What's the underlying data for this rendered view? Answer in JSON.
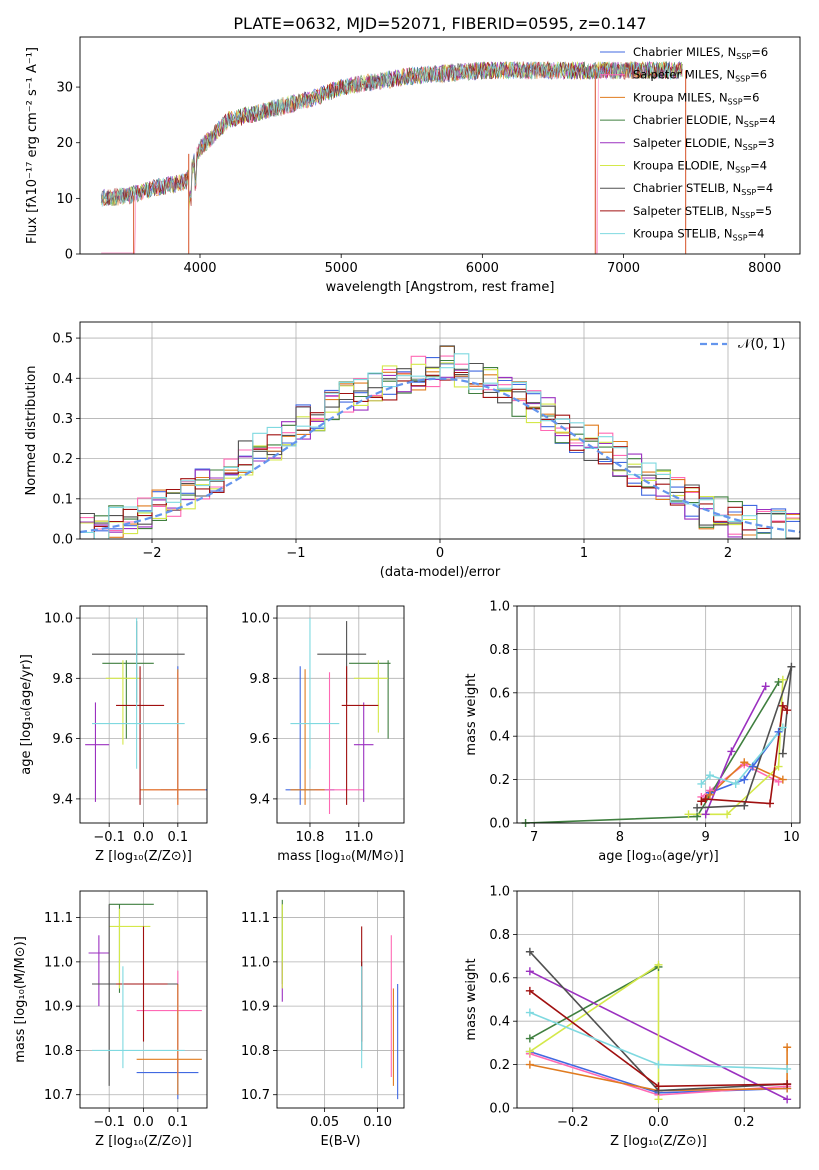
{
  "title": "PLATE=0632, MJD=52071, FIBERID=0595, z=0.147",
  "colors": {
    "Chabrier MILES": "#4169e1",
    "Salpeter MILES": "#ff69b4",
    "Kroupa MILES": "#e07b1f",
    "Chabrier ELODIE": "#3f7f3f",
    "Salpeter ELODIE": "#9b30c0",
    "Kroupa ELODIE": "#d4e84a",
    "Chabrier STELIB": "#505050",
    "Salpeter STELIB": "#a01010",
    "Kroupa STELIB": "#7fd9e0",
    "normal_fit": "#6495ed"
  },
  "panels": {
    "spectrum": {
      "xlabel": "wavelength [Angstrom, rest frame]",
      "ylabel": "Flux [fλ10⁻¹⁷ erg cm⁻² s⁻¹ A⁻¹]",
      "xticks": [
        "4000",
        "5000",
        "6000",
        "7000",
        "8000"
      ],
      "yticks": [
        "0",
        "10",
        "20",
        "30"
      ],
      "legend": [
        {
          "base": "Chabrier MILES, N",
          "sub": "SSP",
          "val": "=6"
        },
        {
          "base": "Salpeter MILES, N",
          "sub": "SSP",
          "val": "=6"
        },
        {
          "base": "Kroupa MILES, N",
          "sub": "SSP",
          "val": "=6"
        },
        {
          "base": "Chabrier ELODIE, N",
          "sub": "SSP",
          "val": "=4"
        },
        {
          "base": "Salpeter ELODIE, N",
          "sub": "SSP",
          "val": "=3"
        },
        {
          "base": "Kroupa ELODIE, N",
          "sub": "SSP",
          "val": "=4"
        },
        {
          "base": "Chabrier STELIB, N",
          "sub": "SSP",
          "val": "=4"
        },
        {
          "base": "Salpeter STELIB, N",
          "sub": "SSP",
          "val": "=5"
        },
        {
          "base": "Kroupa STELIB, N",
          "sub": "SSP",
          "val": "=4"
        }
      ]
    },
    "hist": {
      "xlabel": "(data-model)/error",
      "ylabel": "Normed distribution",
      "xticks": [
        "−2",
        "−1",
        "0",
        "1",
        "2"
      ],
      "yticks": [
        "0.0",
        "0.1",
        "0.2",
        "0.3",
        "0.4",
        "0.5"
      ],
      "legend": "𝒩(0, 1)"
    },
    "age_z": {
      "xlabel": "Z [log₁₀(Z/Z⊙)]",
      "ylabel": "age  [log₁₀(age/yr)]",
      "xticks": [
        "−0.1",
        "0.0",
        "0.1"
      ],
      "yticks": [
        "9.4",
        "9.6",
        "9.8",
        "10.0"
      ]
    },
    "age_mass": {
      "xlabel": "mass [log₁₀(M/M⊙)]",
      "xticks": [
        "10.8",
        "11.0"
      ],
      "yticks": [
        "9.4",
        "9.6",
        "9.8",
        "10.0"
      ]
    },
    "mw_age": {
      "xlabel": "age  [log₁₀(age/yr)]",
      "ylabel": "mass weight",
      "xticks": [
        "7",
        "8",
        "9",
        "10"
      ],
      "yticks": [
        "0.0",
        "0.2",
        "0.4",
        "0.6",
        "0.8",
        "1.0"
      ]
    },
    "mass_z": {
      "xlabel": "Z [log₁₀(Z/Z⊙)]",
      "ylabel": "mass [log₁₀(M/M⊙)]",
      "xticks": [
        "−0.1",
        "0.0",
        "0.1"
      ],
      "yticks": [
        "10.7",
        "10.8",
        "10.9",
        "11.0",
        "11.1"
      ]
    },
    "mass_ebv": {
      "xlabel": "E(B-V)",
      "xticks": [
        "0.05",
        "0.10"
      ],
      "yticks": [
        "10.7",
        "10.8",
        "10.9",
        "11.0",
        "11.1"
      ]
    },
    "mw_z": {
      "xlabel": "Z [log₁₀(Z/Z⊙)]",
      "ylabel": "mass weight",
      "xticks": [
        "−0.2",
        "0.0",
        "0.2"
      ],
      "yticks": [
        "0.0",
        "0.2",
        "0.4",
        "0.6",
        "0.8",
        "1.0"
      ]
    }
  },
  "chart_data": [
    {
      "type": "line",
      "xlim": [
        3150,
        8250
      ],
      "ylim": [
        0,
        39
      ],
      "description_series": "9 model spectra (flux vs rest wavelength) overlapping the observed spectrum",
      "continuum": [
        [
          3300,
          10
        ],
        [
          3500,
          10.5
        ],
        [
          3700,
          12
        ],
        [
          3900,
          13
        ],
        [
          4000,
          19
        ],
        [
          4200,
          24
        ],
        [
          4500,
          26
        ],
        [
          4800,
          28
        ],
        [
          5000,
          30
        ],
        [
          5500,
          32
        ],
        [
          6000,
          33
        ],
        [
          6500,
          33
        ],
        [
          7000,
          33
        ],
        [
          7400,
          33
        ]
      ],
      "gaps": {
        "Salpeter MILES": [
          3530,
          6810,
          7450
        ]
      }
    },
    {
      "type": "bar",
      "xlim": [
        -2.5,
        2.5
      ],
      "ylim": [
        0,
        0.54
      ],
      "normal": {
        "mean": 0,
        "sigma": 1
      },
      "bin_width": 0.1,
      "typical_values": [
        0.02,
        0.03,
        0.04,
        0.05,
        0.06,
        0.08,
        0.09,
        0.11,
        0.13,
        0.16,
        0.18,
        0.2,
        0.22,
        0.24,
        0.27,
        0.29,
        0.31,
        0.33,
        0.35,
        0.36,
        0.38,
        0.39,
        0.4,
        0.41,
        0.42,
        0.44,
        0.42,
        0.4,
        0.39,
        0.38,
        0.35,
        0.33,
        0.31,
        0.28,
        0.26,
        0.24,
        0.22,
        0.2,
        0.17,
        0.15,
        0.13,
        0.11,
        0.09,
        0.07,
        0.06,
        0.05,
        0.04,
        0.03,
        0.03,
        0.02
      ]
    },
    {
      "type": "scatter",
      "name": "age vs Z",
      "xlim": [
        -0.185,
        0.185
      ],
      "ylim": [
        9.32,
        10.04
      ],
      "points": [
        {
          "m": "Chabrier MILES",
          "x": 0.1,
          "y": 9.43,
          "xe": [
            0.05,
            0.2
          ],
          "ye": [
            9.4,
            9.84
          ]
        },
        {
          "m": "Salpeter MILES",
          "x": 0.1,
          "y": 9.43,
          "xe": [
            0.0,
            0.18
          ],
          "ye": [
            9.38,
            9.82
          ]
        },
        {
          "m": "Kroupa MILES",
          "x": 0.1,
          "y": 9.43,
          "xe": [
            -0.01,
            0.18
          ],
          "ye": [
            9.38,
            9.83
          ]
        },
        {
          "m": "Chabrier ELODIE",
          "x": -0.05,
          "y": 9.85,
          "xe": [
            -0.12,
            0.03
          ],
          "ye": [
            9.6,
            9.86
          ]
        },
        {
          "m": "Salpeter ELODIE",
          "x": -0.14,
          "y": 9.58,
          "xe": [
            -0.17,
            -0.1
          ],
          "ye": [
            9.39,
            9.72
          ]
        },
        {
          "m": "Kroupa ELODIE",
          "x": -0.06,
          "y": 9.8,
          "xe": [
            -0.11,
            -0.01
          ],
          "ye": [
            9.58,
            9.86
          ]
        },
        {
          "m": "Chabrier STELIB",
          "x": -0.02,
          "y": 9.88,
          "xe": [
            -0.15,
            0.12
          ],
          "ye": [
            9.72,
            9.99
          ]
        },
        {
          "m": "Salpeter STELIB",
          "x": -0.01,
          "y": 9.71,
          "xe": [
            -0.08,
            0.06
          ],
          "ye": [
            9.38,
            9.84
          ]
        },
        {
          "m": "Kroupa STELIB",
          "x": -0.02,
          "y": 9.65,
          "xe": [
            -0.15,
            0.12
          ],
          "ye": [
            9.5,
            10.0
          ]
        }
      ]
    },
    {
      "type": "scatter",
      "name": "age vs mass",
      "xlim": [
        10.665,
        11.185
      ],
      "ylim": [
        9.32,
        10.04
      ],
      "points": [
        {
          "m": "Chabrier MILES",
          "x": 10.76,
          "y": 9.43,
          "xe": [
            10.7,
            10.9
          ],
          "ye": [
            9.38,
            9.84
          ]
        },
        {
          "m": "Salpeter MILES",
          "x": 10.88,
          "y": 9.43,
          "xe": [
            10.82,
            11.02
          ],
          "ye": [
            9.35,
            9.82
          ]
        },
        {
          "m": "Kroupa MILES",
          "x": 10.78,
          "y": 9.43,
          "xe": [
            10.72,
            10.86
          ],
          "ye": [
            9.38,
            9.83
          ]
        },
        {
          "m": "Chabrier ELODIE",
          "x": 11.12,
          "y": 9.85,
          "xe": [
            10.96,
            11.13
          ],
          "ye": [
            9.6,
            9.86
          ]
        },
        {
          "m": "Salpeter ELODIE",
          "x": 11.02,
          "y": 9.58,
          "xe": [
            10.98,
            11.06
          ],
          "ye": [
            9.39,
            9.72
          ]
        },
        {
          "m": "Kroupa ELODIE",
          "x": 11.08,
          "y": 9.8,
          "xe": [
            10.98,
            11.12
          ],
          "ye": [
            9.62,
            9.86
          ]
        },
        {
          "m": "Chabrier STELIB",
          "x": 10.95,
          "y": 9.88,
          "xe": [
            10.83,
            11.03
          ],
          "ye": [
            9.72,
            9.99
          ]
        },
        {
          "m": "Salpeter STELIB",
          "x": 10.95,
          "y": 9.71,
          "xe": [
            10.93,
            11.08
          ],
          "ye": [
            9.38,
            9.84
          ]
        },
        {
          "m": "Kroupa STELIB",
          "x": 10.8,
          "y": 9.65,
          "xe": [
            10.72,
            10.92
          ],
          "ye": [
            9.5,
            10.0
          ]
        }
      ]
    },
    {
      "type": "line",
      "name": "mass weight vs age",
      "xlim": [
        6.8,
        10.1
      ],
      "ylim": [
        0,
        1
      ],
      "series": [
        {
          "m": "Chabrier MILES",
          "x": [
            8.95,
            9.05,
            9.45,
            9.55,
            9.85
          ],
          "y": [
            0.1,
            0.14,
            0.2,
            0.26,
            0.42
          ]
        },
        {
          "m": "Salpeter MILES",
          "x": [
            8.95,
            9.05,
            9.45,
            9.85
          ],
          "y": [
            0.12,
            0.15,
            0.27,
            0.19
          ]
        },
        {
          "m": "Kroupa MILES",
          "x": [
            8.95,
            9.05,
            9.45,
            9.9
          ],
          "y": [
            0.1,
            0.13,
            0.28,
            0.2
          ]
        },
        {
          "m": "Chabrier ELODIE",
          "x": [
            6.9,
            8.9,
            9.85
          ],
          "y": [
            0.0,
            0.03,
            0.65
          ]
        },
        {
          "m": "Salpeter ELODIE",
          "x": [
            9.0,
            9.3,
            9.7
          ],
          "y": [
            0.04,
            0.33,
            0.63
          ]
        },
        {
          "m": "Kroupa ELODIE",
          "x": [
            8.8,
            9.25,
            9.85,
            9.9
          ],
          "y": [
            0.04,
            0.04,
            0.26,
            0.66
          ]
        },
        {
          "m": "Chabrier STELIB",
          "x": [
            8.9,
            9.45,
            10.0,
            9.9
          ],
          "y": [
            0.07,
            0.08,
            0.72,
            0.32
          ]
        },
        {
          "m": "Salpeter STELIB",
          "x": [
            8.95,
            9.0,
            9.75,
            9.9,
            9.95
          ],
          "y": [
            0.1,
            0.11,
            0.09,
            0.54,
            0.52
          ]
        },
        {
          "m": "Kroupa STELIB",
          "x": [
            8.95,
            9.05,
            9.35,
            9.9
          ],
          "y": [
            0.18,
            0.22,
            0.18,
            0.44
          ]
        }
      ]
    },
    {
      "type": "scatter",
      "name": "mass vs Z",
      "xlim": [
        -0.185,
        0.185
      ],
      "ylim": [
        10.67,
        11.16
      ],
      "points": [
        {
          "m": "Chabrier MILES",
          "x": 0.1,
          "y": 10.75,
          "xe": [
            -0.02,
            0.16
          ],
          "ye": [
            10.69,
            10.95
          ]
        },
        {
          "m": "Salpeter MILES",
          "x": 0.1,
          "y": 10.89,
          "xe": [
            -0.02,
            0.17
          ],
          "ye": [
            10.74,
            10.98
          ]
        },
        {
          "m": "Kroupa MILES",
          "x": 0.1,
          "y": 10.78,
          "xe": [
            -0.02,
            0.17
          ],
          "ye": [
            10.7,
            10.95
          ]
        },
        {
          "m": "Chabrier ELODIE",
          "x": -0.07,
          "y": 11.13,
          "xe": [
            -0.1,
            0.03
          ],
          "ye": [
            10.93,
            11.13
          ]
        },
        {
          "m": "Salpeter ELODIE",
          "x": -0.13,
          "y": 11.02,
          "xe": [
            -0.16,
            -0.1
          ],
          "ye": [
            10.9,
            11.06
          ]
        },
        {
          "m": "Kroupa ELODIE",
          "x": -0.07,
          "y": 11.08,
          "xe": [
            -0.1,
            0.02
          ],
          "ye": [
            10.94,
            11.12
          ]
        },
        {
          "m": "Chabrier STELIB",
          "x": -0.1,
          "y": 10.95,
          "xe": [
            -0.15,
            0.1
          ],
          "ye": [
            10.72,
            11.13
          ]
        },
        {
          "m": "Salpeter STELIB",
          "x": 0.0,
          "y": 10.95,
          "xe": [
            -0.08,
            0.07
          ],
          "ye": [
            10.82,
            11.08
          ]
        },
        {
          "m": "Kroupa STELIB",
          "x": -0.06,
          "y": 10.8,
          "xe": [
            -0.15,
            0.12
          ],
          "ye": [
            10.76,
            10.99
          ]
        }
      ]
    },
    {
      "type": "scatter",
      "name": "mass vs E(B-V)",
      "xlim": [
        0.005,
        0.125
      ],
      "ylim": [
        10.67,
        11.16
      ],
      "points": [
        {
          "m": "Chabrier MILES",
          "x": 0.119,
          "y": 10.78,
          "ye": [
            10.69,
            10.95
          ]
        },
        {
          "m": "Salpeter MILES",
          "x": 0.113,
          "y": 10.89,
          "ye": [
            10.74,
            11.06
          ]
        },
        {
          "m": "Kroupa MILES",
          "x": 0.115,
          "y": 10.78,
          "ye": [
            10.72,
            10.94
          ]
        },
        {
          "m": "Chabrier ELODIE",
          "x": 0.01,
          "y": 11.13,
          "ye": [
            10.95,
            11.14
          ]
        },
        {
          "m": "Salpeter ELODIE",
          "x": 0.01,
          "y": 10.95,
          "ye": [
            10.91,
            11.0
          ]
        },
        {
          "m": "Kroupa ELODIE",
          "x": 0.01,
          "y": 11.08,
          "ye": [
            10.94,
            11.13
          ]
        },
        {
          "m": "Chabrier STELIB",
          "x": 0.085,
          "y": 10.95,
          "ye": [
            10.8,
            11.0
          ]
        },
        {
          "m": "Salpeter STELIB",
          "x": 0.085,
          "y": 10.95,
          "ye": [
            10.82,
            11.08
          ]
        },
        {
          "m": "Kroupa STELIB",
          "x": 0.085,
          "y": 10.8,
          "ye": [
            10.76,
            10.99
          ]
        }
      ]
    },
    {
      "type": "line",
      "name": "mass weight vs Z",
      "xlim": [
        -0.33,
        0.33
      ],
      "ylim": [
        0,
        1
      ],
      "series": [
        {
          "m": "Chabrier MILES",
          "x": [
            -0.3,
            0.0,
            0.3
          ],
          "y": [
            0.26,
            0.07,
            0.09
          ]
        },
        {
          "m": "Salpeter MILES",
          "x": [
            -0.3,
            0.0,
            0.3
          ],
          "y": [
            0.25,
            0.06,
            0.1
          ]
        },
        {
          "m": "Kroupa MILES",
          "x": [
            -0.3,
            0.0,
            0.3,
            0.3
          ],
          "y": [
            0.2,
            0.08,
            0.09,
            0.28
          ]
        },
        {
          "m": "Chabrier ELODIE",
          "x": [
            -0.3,
            0.0
          ],
          "y": [
            0.32,
            0.65
          ]
        },
        {
          "m": "Salpeter ELODIE",
          "x": [
            -0.3,
            0.3
          ],
          "y": [
            0.63,
            0.04
          ]
        },
        {
          "m": "Kroupa ELODIE",
          "x": [
            -0.3,
            0.0,
            0.0
          ],
          "y": [
            0.26,
            0.66,
            0.04
          ]
        },
        {
          "m": "Chabrier STELIB",
          "x": [
            -0.3,
            0.0,
            0.3
          ],
          "y": [
            0.72,
            0.08,
            0.11
          ]
        },
        {
          "m": "Salpeter STELIB",
          "x": [
            -0.3,
            0.0,
            0.3
          ],
          "y": [
            0.54,
            0.1,
            0.11
          ]
        },
        {
          "m": "Kroupa STELIB",
          "x": [
            -0.3,
            0.0,
            0.3
          ],
          "y": [
            0.44,
            0.2,
            0.18
          ]
        }
      ]
    }
  ]
}
